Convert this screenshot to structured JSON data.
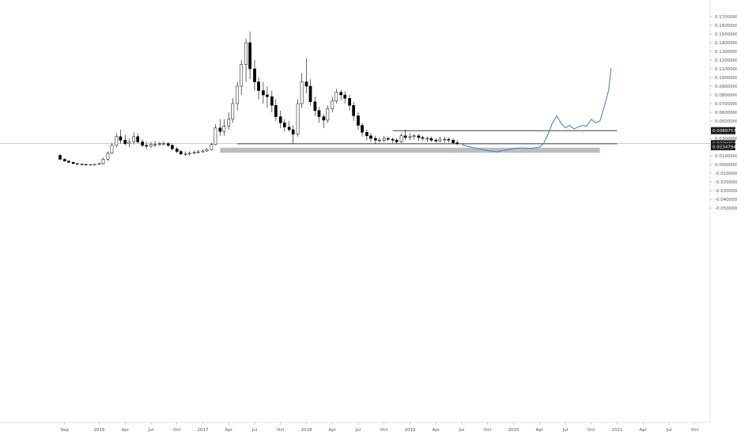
{
  "chart_data": {
    "type": "candlestick",
    "title": "",
    "xlabel": "",
    "ylabel": "",
    "ylim": [
      -0.06,
      0.175
    ],
    "x_ticks": [
      "Sep",
      "2016",
      "Apr",
      "Jul",
      "Oct",
      "2017",
      "Apr",
      "Jul",
      "Oct",
      "2018",
      "Apr",
      "Jul",
      "Oct",
      "2019",
      "Apr",
      "Jul",
      "Oct",
      "2020",
      "Apr",
      "Jul",
      "Oct",
      "2021",
      "Apr",
      "Jul",
      "Oct"
    ],
    "y_ticks": [
      {
        "value": 0.17,
        "label": "0.1700000"
      },
      {
        "value": 0.16,
        "label": "0.1600000"
      },
      {
        "value": 0.15,
        "label": "0.1500000"
      },
      {
        "value": 0.14,
        "label": "0.1400000"
      },
      {
        "value": 0.13,
        "label": "0.1300000"
      },
      {
        "value": 0.12,
        "label": "0.1200000"
      },
      {
        "value": 0.11,
        "label": "0.1100000"
      },
      {
        "value": 0.1,
        "label": "0.1000000"
      },
      {
        "value": 0.09,
        "label": "0.0900000"
      },
      {
        "value": 0.08,
        "label": "0.0800000"
      },
      {
        "value": 0.07,
        "label": "0.0700000"
      },
      {
        "value": 0.06,
        "label": "0.0600000"
      },
      {
        "value": 0.05,
        "label": "0.0500000"
      },
      {
        "value": 0.03,
        "label": "0.0300000"
      },
      {
        "value": 0.01,
        "label": "0.0100000"
      },
      {
        "value": 0.0,
        "label": "0.0000000"
      },
      {
        "value": -0.01,
        "label": "-0.0100000"
      },
      {
        "value": -0.02,
        "label": "-0.0200000"
      },
      {
        "value": -0.03,
        "label": "-0.0300000"
      },
      {
        "value": -0.04,
        "label": "-0.0400000"
      },
      {
        "value": -0.05,
        "label": "-0.0500000"
      }
    ],
    "price_tags": [
      {
        "value": 0.0389,
        "label": "0.0389757",
        "style": "dark"
      },
      {
        "value": 0.0239,
        "label": "0.0238258",
        "style": "dark"
      },
      {
        "value": 0.0205,
        "label": "0.0234794",
        "style": "dark"
      }
    ],
    "horizontal_levels": [
      {
        "value": 0.0389,
        "start_x": "2018-11",
        "end_x": "2021-01",
        "color": "#222222"
      },
      {
        "value": 0.0238,
        "start_x": "2017-05",
        "end_x": "2021-01",
        "color": "#222222"
      }
    ],
    "crosshair_value": 0.0242,
    "support_zone": {
      "y_low": 0.0135,
      "y_high": 0.0193,
      "start_x": "2017-03",
      "end_x": "2020-11",
      "color": "#bdbdbd"
    },
    "series": [
      {
        "type": "candlestick",
        "color_up": "#ffffff",
        "color_down": "#000000",
        "wick_color": "#000000",
        "x": [
          "2015-08-15",
          "2015-09-01",
          "2015-09-15",
          "2015-10-01",
          "2015-10-15",
          "2015-11-01",
          "2015-11-15",
          "2015-12-01",
          "2015-12-15",
          "2016-01-01",
          "2016-01-15",
          "2016-02-01",
          "2016-02-15",
          "2016-03-01",
          "2016-03-15",
          "2016-04-01",
          "2016-04-15",
          "2016-05-01",
          "2016-05-15",
          "2016-06-01",
          "2016-06-15",
          "2016-07-01",
          "2016-07-15",
          "2016-08-01",
          "2016-08-15",
          "2016-09-01",
          "2016-09-15",
          "2016-10-01",
          "2016-10-15",
          "2016-11-01",
          "2016-11-15",
          "2016-12-01",
          "2016-12-15",
          "2017-01-01",
          "2017-01-15",
          "2017-02-01",
          "2017-02-15",
          "2017-03-01",
          "2017-03-15",
          "2017-04-01",
          "2017-04-15",
          "2017-05-01",
          "2017-05-15",
          "2017-06-01",
          "2017-06-15",
          "2017-07-01",
          "2017-07-15",
          "2017-08-01",
          "2017-08-15",
          "2017-09-01",
          "2017-09-15",
          "2017-10-01",
          "2017-10-15",
          "2017-11-01",
          "2017-11-15",
          "2017-12-01",
          "2017-12-15",
          "2018-01-01",
          "2018-01-15",
          "2018-02-01",
          "2018-02-15",
          "2018-03-01",
          "2018-03-15",
          "2018-04-01",
          "2018-04-15",
          "2018-05-01",
          "2018-05-15",
          "2018-06-01",
          "2018-06-15",
          "2018-07-01",
          "2018-07-15",
          "2018-08-01",
          "2018-08-15",
          "2018-09-01",
          "2018-09-15",
          "2018-10-01",
          "2018-10-15",
          "2018-11-01",
          "2018-11-15",
          "2018-12-01",
          "2018-12-15",
          "2019-01-01",
          "2019-01-15",
          "2019-02-01",
          "2019-02-15",
          "2019-03-01",
          "2019-03-15",
          "2019-04-01",
          "2019-04-15",
          "2019-05-01",
          "2019-05-15",
          "2019-06-01",
          "2019-06-15"
        ],
        "open": [
          0.0105,
          0.006,
          0.004,
          0.0025,
          0.001,
          0.0005,
          0.0002,
          0.0,
          0.0,
          0.0002,
          0.001,
          0.006,
          0.013,
          0.022,
          0.032,
          0.028,
          0.024,
          0.026,
          0.032,
          0.026,
          0.022,
          0.021,
          0.023,
          0.023,
          0.024,
          0.024,
          0.022,
          0.018,
          0.015,
          0.012,
          0.012,
          0.013,
          0.014,
          0.0145,
          0.0155,
          0.017,
          0.023,
          0.042,
          0.038,
          0.044,
          0.052,
          0.07,
          0.09,
          0.115,
          0.14,
          0.11,
          0.095,
          0.085,
          0.08,
          0.078,
          0.068,
          0.055,
          0.048,
          0.043,
          0.04,
          0.035,
          0.07,
          0.095,
          0.09,
          0.072,
          0.062,
          0.055,
          0.051,
          0.064,
          0.073,
          0.083,
          0.08,
          0.076,
          0.068,
          0.056,
          0.045,
          0.037,
          0.033,
          0.03,
          0.028,
          0.028,
          0.03,
          0.029,
          0.028,
          0.026,
          0.033,
          0.031,
          0.032,
          0.033,
          0.031,
          0.03,
          0.03,
          0.028,
          0.027,
          0.029,
          0.029,
          0.028,
          0.025
        ],
        "high": [
          0.012,
          0.007,
          0.005,
          0.0035,
          0.002,
          0.0012,
          0.0008,
          0.0005,
          0.0008,
          0.002,
          0.008,
          0.015,
          0.025,
          0.036,
          0.04,
          0.034,
          0.03,
          0.037,
          0.036,
          0.029,
          0.026,
          0.026,
          0.027,
          0.026,
          0.027,
          0.026,
          0.024,
          0.02,
          0.017,
          0.015,
          0.015,
          0.016,
          0.017,
          0.017,
          0.019,
          0.025,
          0.046,
          0.052,
          0.052,
          0.06,
          0.076,
          0.095,
          0.12,
          0.145,
          0.153,
          0.12,
          0.1,
          0.095,
          0.09,
          0.085,
          0.075,
          0.062,
          0.052,
          0.05,
          0.045,
          0.075,
          0.105,
          0.122,
          0.098,
          0.078,
          0.066,
          0.058,
          0.068,
          0.078,
          0.087,
          0.086,
          0.084,
          0.08,
          0.072,
          0.06,
          0.048,
          0.04,
          0.036,
          0.033,
          0.031,
          0.033,
          0.032,
          0.031,
          0.03,
          0.036,
          0.04,
          0.036,
          0.035,
          0.035,
          0.033,
          0.032,
          0.032,
          0.03,
          0.032,
          0.032,
          0.031,
          0.03,
          0.028
        ],
        "low": [
          0.005,
          0.0035,
          0.002,
          0.0005,
          0.0,
          -0.0005,
          -0.0008,
          -0.001,
          -0.0008,
          -0.0005,
          0.0,
          0.004,
          0.012,
          0.02,
          0.024,
          0.022,
          0.02,
          0.023,
          0.024,
          0.02,
          0.018,
          0.019,
          0.02,
          0.021,
          0.022,
          0.02,
          0.016,
          0.013,
          0.011,
          0.01,
          0.0105,
          0.0115,
          0.0125,
          0.0135,
          0.0145,
          0.016,
          0.022,
          0.033,
          0.033,
          0.04,
          0.048,
          0.062,
          0.08,
          0.095,
          0.098,
          0.085,
          0.075,
          0.07,
          0.065,
          0.06,
          0.05,
          0.042,
          0.038,
          0.038,
          0.024,
          0.032,
          0.065,
          0.082,
          0.068,
          0.056,
          0.048,
          0.042,
          0.048,
          0.06,
          0.07,
          0.074,
          0.07,
          0.062,
          0.05,
          0.04,
          0.032,
          0.028,
          0.026,
          0.024,
          0.025,
          0.026,
          0.027,
          0.025,
          0.024,
          0.025,
          0.028,
          0.028,
          0.029,
          0.027,
          0.027,
          0.026,
          0.026,
          0.025,
          0.026,
          0.025,
          0.025,
          0.024,
          0.022
        ],
        "close": [
          0.006,
          0.004,
          0.0025,
          0.001,
          0.0005,
          0.0002,
          0.0,
          0.0,
          0.0002,
          0.001,
          0.006,
          0.013,
          0.022,
          0.032,
          0.028,
          0.024,
          0.026,
          0.032,
          0.026,
          0.022,
          0.021,
          0.023,
          0.023,
          0.024,
          0.024,
          0.022,
          0.018,
          0.015,
          0.012,
          0.012,
          0.013,
          0.014,
          0.0145,
          0.0155,
          0.017,
          0.023,
          0.042,
          0.038,
          0.044,
          0.052,
          0.07,
          0.09,
          0.115,
          0.14,
          0.11,
          0.095,
          0.085,
          0.08,
          0.078,
          0.068,
          0.055,
          0.048,
          0.043,
          0.04,
          0.035,
          0.07,
          0.095,
          0.09,
          0.072,
          0.062,
          0.055,
          0.051,
          0.064,
          0.073,
          0.083,
          0.08,
          0.076,
          0.068,
          0.056,
          0.045,
          0.037,
          0.033,
          0.03,
          0.028,
          0.028,
          0.03,
          0.029,
          0.028,
          0.026,
          0.033,
          0.031,
          0.032,
          0.033,
          0.031,
          0.03,
          0.03,
          0.028,
          0.027,
          0.029,
          0.029,
          0.028,
          0.025,
          0.024
        ]
      },
      {
        "type": "line",
        "color": "#4a86c8",
        "x": [
          "2019-07-01",
          "2019-08-01",
          "2019-09-01",
          "2019-10-01",
          "2019-11-01",
          "2019-12-01",
          "2020-01-01",
          "2020-02-01",
          "2020-03-01",
          "2020-04-01",
          "2020-04-15",
          "2020-05-01",
          "2020-05-15",
          "2020-06-01",
          "2020-06-15",
          "2020-07-01",
          "2020-07-15",
          "2020-08-01",
          "2020-08-15",
          "2020-09-01",
          "2020-09-15",
          "2020-10-01",
          "2020-10-15",
          "2020-11-01",
          "2020-11-15",
          "2020-12-01",
          "2020-12-10"
        ],
        "y": [
          0.023,
          0.02,
          0.018,
          0.016,
          0.0145,
          0.0165,
          0.0185,
          0.019,
          0.0185,
          0.02,
          0.024,
          0.035,
          0.047,
          0.056,
          0.048,
          0.042,
          0.045,
          0.041,
          0.043,
          0.045,
          0.044,
          0.052,
          0.048,
          0.05,
          0.065,
          0.085,
          0.111
        ]
      }
    ]
  }
}
